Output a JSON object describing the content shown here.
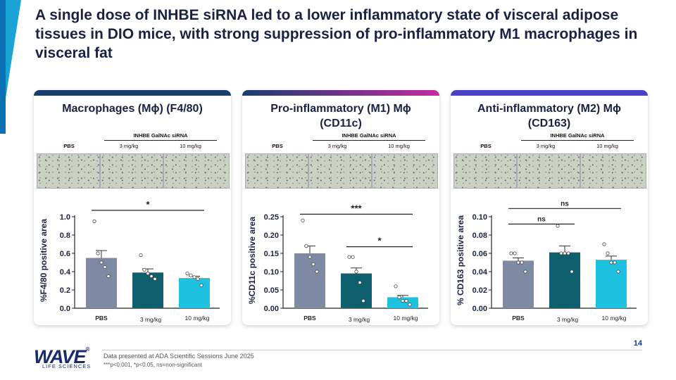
{
  "title": "A single dose of INHBE siRNA led to a lower inflammatory state of visceral adipose tissues in DIO mice, with strong suppression of pro-inflammatory M1 macrophages in visceral fat",
  "footnote": "Data presented at ADA Scientific Sessions June 2025",
  "significance_key": "***p<0.001, *p<0.05, ns=non-significant",
  "page_number": "14",
  "logo": {
    "name": "WAVE",
    "tagline": "LIFE SCIENCES"
  },
  "colors": {
    "pbs": "#7e8aa3",
    "low_dose": "#0d5f6e",
    "high_dose": "#1cc2e0",
    "bar1": "#1a3d6e",
    "bar2_start": "#1a3d6e",
    "bar2_end": "#c22ba0",
    "bar3": "#4a3fc7"
  },
  "panels": [
    {
      "title_line1": "Macrophages (Mϕ) (F4/80)",
      "title_line2": "",
      "group_label": "INHBE GalNAc siRNA",
      "col_labels": [
        "PBS",
        "3 mg/kg",
        "10 mg/kg"
      ]
    },
    {
      "title_line1": "Pro-inflammatory (M1) Mϕ",
      "title_line2": "(CD11c)",
      "group_label": "INHBE GalNAc siRNA",
      "col_labels": [
        "PBS",
        "3 mg/kg",
        "10 mg/kg"
      ]
    },
    {
      "title_line1": "Anti-inflammatory (M2) Mϕ",
      "title_line2": "(CD163)",
      "group_label": "INHBE GalNAc siRNA",
      "col_labels": [
        "PBS",
        "3 mg/kg",
        "10 mg/kg"
      ]
    }
  ],
  "chart_data": [
    {
      "type": "bar",
      "categories": [
        "PBS",
        "3 mg/kg",
        "10 mg/kg"
      ],
      "ylabel": "%F4/80 positive area",
      "ylim": [
        0,
        1.0
      ],
      "yticks": [
        "0.0",
        "0.2",
        "0.4",
        "0.6",
        "0.8",
        "1.0"
      ],
      "ytick_values": [
        0,
        0.2,
        0.4,
        0.6,
        0.8,
        1.0
      ],
      "values": [
        0.55,
        0.39,
        0.33
      ],
      "errors": [
        0.08,
        0.04,
        0.02
      ],
      "points": [
        [
          0.95,
          0.6,
          0.5,
          0.45,
          0.35
        ],
        [
          0.58,
          0.42,
          0.38,
          0.35,
          0.32
        ],
        [
          0.38,
          0.36,
          0.34,
          0.32,
          0.25
        ]
      ],
      "significance": [
        {
          "from": 0,
          "to": 2,
          "label": "*",
          "level": 1.07
        }
      ]
    },
    {
      "type": "bar",
      "categories": [
        "PBS",
        "3 mg/kg",
        "10 mg/kg"
      ],
      "ylabel": "%CD11c positive area",
      "ylim": [
        0,
        0.25
      ],
      "yticks": [
        "0.00",
        "0.05",
        "0.10",
        "0.15",
        "0.20",
        "0.25"
      ],
      "ytick_values": [
        0,
        0.05,
        0.1,
        0.15,
        0.2,
        0.25
      ],
      "values": [
        0.15,
        0.095,
        0.03
      ],
      "errors": [
        0.02,
        0.015,
        0.005
      ],
      "points": [
        [
          0.24,
          0.17,
          0.14,
          0.12,
          0.1
        ],
        [
          0.14,
          0.14,
          0.1,
          0.07,
          0.02
        ],
        [
          0.06,
          0.03,
          0.02,
          0.02,
          0.01
        ]
      ],
      "significance": [
        {
          "from": 0,
          "to": 2,
          "label": "***",
          "level": 0.257
        },
        {
          "from": 1,
          "to": 2,
          "label": "*",
          "level": 0.168
        }
      ]
    },
    {
      "type": "bar",
      "categories": [
        "PBS",
        "3 mg/kg",
        "10 mg/kg"
      ],
      "ylabel": "% CD163 positive area",
      "ylim": [
        0,
        0.1
      ],
      "yticks": [
        "0.00",
        "0.02",
        "0.04",
        "0.06",
        "0.08",
        "0.10"
      ],
      "ytick_values": [
        0,
        0.02,
        0.04,
        0.06,
        0.08,
        0.1
      ],
      "values": [
        0.052,
        0.061,
        0.053
      ],
      "errors": [
        0.003,
        0.007,
        0.004
      ],
      "points": [
        [
          0.06,
          0.06,
          0.05,
          0.05,
          0.04
        ],
        [
          0.09,
          0.06,
          0.06,
          0.06,
          0.04
        ],
        [
          0.07,
          0.06,
          0.05,
          0.05,
          0.04
        ]
      ],
      "significance": [
        {
          "from": 0,
          "to": 2,
          "label": "ns",
          "level": 0.109
        },
        {
          "from": 0,
          "to": 1,
          "label": "ns",
          "level": 0.092
        }
      ]
    }
  ]
}
